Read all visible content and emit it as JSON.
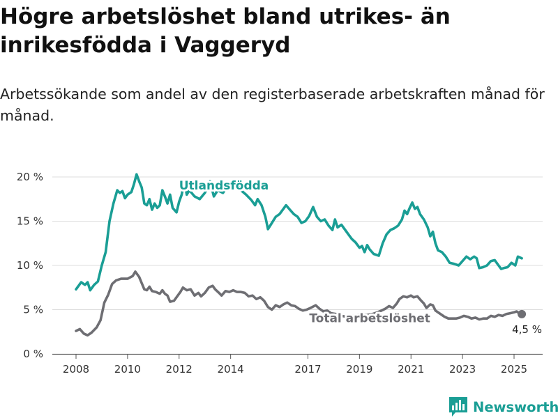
{
  "title": "Högre arbetslöshet bland utrikes- än inrikesfödda i Vaggeryd",
  "subtitle": "Arbetssökande som andel av den registerbaserade arbetskraften månad för månad.",
  "brand": {
    "name": "Newsworthy"
  },
  "colors": {
    "foreign": "#1a9e95",
    "total": "#6e6e73",
    "end_marker": "#6e6e73"
  },
  "chart_data": {
    "type": "line",
    "title": "Högre arbetslöshet bland utrikes- än inrikesfödda i Vaggeryd",
    "xlabel": "",
    "ylabel": "",
    "xlim": [
      2007.6,
      2026.0
    ],
    "ylim": [
      0,
      20.5
    ],
    "grid": true,
    "x_ticks": [
      2008,
      2010,
      2012,
      2014,
      2017,
      2019,
      2021,
      2023,
      2025
    ],
    "y_ticks": [
      0,
      5,
      10,
      15,
      20
    ],
    "y_tick_labels": [
      "0 %",
      "5 %",
      "10 %",
      "15 %",
      "20 %"
    ],
    "series": [
      {
        "name": "Utlandsfödda",
        "color": "#1a9e95",
        "points": [
          [
            2008.0,
            7.3
          ],
          [
            2008.2,
            8.1
          ],
          [
            2008.35,
            7.8
          ],
          [
            2008.45,
            8.1
          ],
          [
            2008.55,
            7.2
          ],
          [
            2008.7,
            7.8
          ],
          [
            2008.85,
            8.2
          ],
          [
            2009.0,
            10.0
          ],
          [
            2009.15,
            11.5
          ],
          [
            2009.3,
            15.0
          ],
          [
            2009.45,
            17.0
          ],
          [
            2009.6,
            18.5
          ],
          [
            2009.7,
            18.2
          ],
          [
            2009.8,
            18.4
          ],
          [
            2009.9,
            17.6
          ],
          [
            2010.0,
            18.0
          ],
          [
            2010.15,
            18.3
          ],
          [
            2010.25,
            19.2
          ],
          [
            2010.35,
            20.3
          ],
          [
            2010.45,
            19.5
          ],
          [
            2010.55,
            18.8
          ],
          [
            2010.65,
            17.0
          ],
          [
            2010.75,
            16.8
          ],
          [
            2010.85,
            17.5
          ],
          [
            2010.95,
            16.3
          ],
          [
            2011.05,
            17.0
          ],
          [
            2011.15,
            16.5
          ],
          [
            2011.25,
            16.8
          ],
          [
            2011.35,
            18.5
          ],
          [
            2011.45,
            17.8
          ],
          [
            2011.55,
            17.0
          ],
          [
            2011.65,
            18.0
          ],
          [
            2011.75,
            16.5
          ],
          [
            2011.9,
            16.0
          ],
          [
            2012.0,
            17.2
          ],
          [
            2012.1,
            18.0
          ],
          [
            2012.2,
            19.5
          ],
          [
            2012.3,
            18.0
          ],
          [
            2012.4,
            18.5
          ],
          [
            2012.6,
            17.8
          ],
          [
            2012.8,
            17.5
          ],
          [
            2013.0,
            18.2
          ],
          [
            2013.2,
            19.5
          ],
          [
            2013.35,
            17.8
          ],
          [
            2013.5,
            18.5
          ],
          [
            2013.7,
            18.2
          ],
          [
            2013.85,
            18.8
          ],
          [
            2014.0,
            19.0
          ],
          [
            2014.2,
            19.3
          ],
          [
            2014.4,
            18.5
          ],
          [
            2014.6,
            18.0
          ],
          [
            2014.8,
            17.4
          ],
          [
            2014.95,
            16.8
          ],
          [
            2015.05,
            17.5
          ],
          [
            2015.2,
            16.8
          ],
          [
            2015.35,
            15.5
          ],
          [
            2015.45,
            14.1
          ],
          [
            2015.6,
            14.8
          ],
          [
            2015.75,
            15.5
          ],
          [
            2015.9,
            15.8
          ],
          [
            2016.05,
            16.4
          ],
          [
            2016.15,
            16.8
          ],
          [
            2016.3,
            16.3
          ],
          [
            2016.45,
            15.8
          ],
          [
            2016.6,
            15.5
          ],
          [
            2016.75,
            14.8
          ],
          [
            2016.9,
            15.0
          ],
          [
            2017.05,
            15.6
          ],
          [
            2017.2,
            16.6
          ],
          [
            2017.35,
            15.5
          ],
          [
            2017.5,
            15.0
          ],
          [
            2017.65,
            15.2
          ],
          [
            2017.8,
            14.5
          ],
          [
            2017.95,
            14.0
          ],
          [
            2018.05,
            15.2
          ],
          [
            2018.15,
            14.3
          ],
          [
            2018.3,
            14.6
          ],
          [
            2018.45,
            14.0
          ],
          [
            2018.55,
            13.6
          ],
          [
            2018.7,
            13.0
          ],
          [
            2018.85,
            12.6
          ],
          [
            2019.0,
            12.0
          ],
          [
            2019.1,
            12.2
          ],
          [
            2019.2,
            11.5
          ],
          [
            2019.3,
            12.3
          ],
          [
            2019.4,
            11.8
          ],
          [
            2019.55,
            11.3
          ],
          [
            2019.75,
            11.1
          ],
          [
            2019.9,
            12.5
          ],
          [
            2020.05,
            13.5
          ],
          [
            2020.2,
            14.0
          ],
          [
            2020.35,
            14.2
          ],
          [
            2020.5,
            14.5
          ],
          [
            2020.65,
            15.2
          ],
          [
            2020.75,
            16.2
          ],
          [
            2020.85,
            15.8
          ],
          [
            2020.95,
            16.5
          ],
          [
            2021.05,
            17.1
          ],
          [
            2021.15,
            16.4
          ],
          [
            2021.25,
            16.6
          ],
          [
            2021.35,
            15.8
          ],
          [
            2021.5,
            15.2
          ],
          [
            2021.65,
            14.3
          ],
          [
            2021.75,
            13.3
          ],
          [
            2021.85,
            13.8
          ],
          [
            2021.95,
            12.5
          ],
          [
            2022.05,
            11.7
          ],
          [
            2022.2,
            11.5
          ],
          [
            2022.35,
            11.0
          ],
          [
            2022.5,
            10.3
          ],
          [
            2022.65,
            10.2
          ],
          [
            2022.85,
            10.0
          ],
          [
            2023.0,
            10.5
          ],
          [
            2023.15,
            11.0
          ],
          [
            2023.3,
            10.7
          ],
          [
            2023.45,
            11.0
          ],
          [
            2023.55,
            10.8
          ],
          [
            2023.65,
            9.7
          ],
          [
            2023.8,
            9.8
          ],
          [
            2023.95,
            10.0
          ],
          [
            2024.1,
            10.5
          ],
          [
            2024.25,
            10.6
          ],
          [
            2024.4,
            10.0
          ],
          [
            2024.5,
            9.6
          ],
          [
            2024.6,
            9.7
          ],
          [
            2024.75,
            9.8
          ],
          [
            2024.9,
            10.3
          ],
          [
            2025.05,
            10.0
          ],
          [
            2025.15,
            11.0
          ],
          [
            2025.3,
            10.8
          ]
        ]
      },
      {
        "name": "Total arbetslöshet",
        "color": "#6e6e73",
        "points": [
          [
            2008.0,
            2.6
          ],
          [
            2008.15,
            2.8
          ],
          [
            2008.3,
            2.3
          ],
          [
            2008.45,
            2.1
          ],
          [
            2008.6,
            2.4
          ],
          [
            2008.8,
            3.0
          ],
          [
            2008.95,
            3.8
          ],
          [
            2009.1,
            5.8
          ],
          [
            2009.25,
            6.7
          ],
          [
            2009.4,
            7.9
          ],
          [
            2009.55,
            8.3
          ],
          [
            2009.75,
            8.5
          ],
          [
            2010.0,
            8.5
          ],
          [
            2010.2,
            8.8
          ],
          [
            2010.3,
            9.3
          ],
          [
            2010.45,
            8.7
          ],
          [
            2010.55,
            8.0
          ],
          [
            2010.65,
            7.3
          ],
          [
            2010.75,
            7.2
          ],
          [
            2010.85,
            7.6
          ],
          [
            2010.95,
            7.1
          ],
          [
            2011.1,
            7.0
          ],
          [
            2011.25,
            6.8
          ],
          [
            2011.35,
            7.2
          ],
          [
            2011.45,
            6.8
          ],
          [
            2011.55,
            6.6
          ],
          [
            2011.65,
            5.9
          ],
          [
            2011.8,
            6.0
          ],
          [
            2011.95,
            6.6
          ],
          [
            2012.05,
            7.0
          ],
          [
            2012.15,
            7.5
          ],
          [
            2012.3,
            7.2
          ],
          [
            2012.45,
            7.3
          ],
          [
            2012.6,
            6.6
          ],
          [
            2012.75,
            6.9
          ],
          [
            2012.85,
            6.5
          ],
          [
            2013.0,
            6.9
          ],
          [
            2013.15,
            7.5
          ],
          [
            2013.3,
            7.7
          ],
          [
            2013.4,
            7.3
          ],
          [
            2013.55,
            6.9
          ],
          [
            2013.65,
            6.6
          ],
          [
            2013.8,
            7.1
          ],
          [
            2013.95,
            7.0
          ],
          [
            2014.1,
            7.2
          ],
          [
            2014.25,
            7.0
          ],
          [
            2014.4,
            7.0
          ],
          [
            2014.55,
            6.9
          ],
          [
            2014.7,
            6.5
          ],
          [
            2014.85,
            6.6
          ],
          [
            2015.0,
            6.2
          ],
          [
            2015.15,
            6.4
          ],
          [
            2015.3,
            6.0
          ],
          [
            2015.45,
            5.3
          ],
          [
            2015.6,
            5.0
          ],
          [
            2015.75,
            5.5
          ],
          [
            2015.9,
            5.3
          ],
          [
            2016.05,
            5.6
          ],
          [
            2016.2,
            5.8
          ],
          [
            2016.35,
            5.5
          ],
          [
            2016.5,
            5.4
          ],
          [
            2016.65,
            5.1
          ],
          [
            2016.8,
            4.9
          ],
          [
            2016.95,
            5.0
          ],
          [
            2017.1,
            5.2
          ],
          [
            2017.3,
            5.5
          ],
          [
            2017.45,
            5.1
          ],
          [
            2017.6,
            4.8
          ],
          [
            2017.75,
            4.9
          ],
          [
            2017.9,
            4.6
          ],
          [
            2018.1,
            4.5
          ],
          [
            2018.3,
            4.3
          ],
          [
            2018.5,
            4.2
          ],
          [
            2018.7,
            4.3
          ],
          [
            2018.9,
            4.4
          ],
          [
            2019.1,
            4.5
          ],
          [
            2019.3,
            4.4
          ],
          [
            2019.5,
            4.5
          ],
          [
            2019.7,
            4.7
          ],
          [
            2019.85,
            4.9
          ],
          [
            2020.0,
            5.1
          ],
          [
            2020.15,
            5.4
          ],
          [
            2020.3,
            5.2
          ],
          [
            2020.45,
            5.7
          ],
          [
            2020.55,
            6.2
          ],
          [
            2020.7,
            6.5
          ],
          [
            2020.85,
            6.4
          ],
          [
            2021.0,
            6.6
          ],
          [
            2021.1,
            6.4
          ],
          [
            2021.25,
            6.5
          ],
          [
            2021.4,
            6.0
          ],
          [
            2021.5,
            5.7
          ],
          [
            2021.6,
            5.2
          ],
          [
            2021.75,
            5.6
          ],
          [
            2021.85,
            5.5
          ],
          [
            2021.95,
            4.9
          ],
          [
            2022.1,
            4.6
          ],
          [
            2022.3,
            4.2
          ],
          [
            2022.45,
            4.0
          ],
          [
            2022.6,
            4.0
          ],
          [
            2022.75,
            4.0
          ],
          [
            2022.9,
            4.1
          ],
          [
            2023.05,
            4.3
          ],
          [
            2023.2,
            4.2
          ],
          [
            2023.35,
            4.0
          ],
          [
            2023.5,
            4.1
          ],
          [
            2023.65,
            3.9
          ],
          [
            2023.8,
            4.0
          ],
          [
            2023.95,
            4.0
          ],
          [
            2024.1,
            4.3
          ],
          [
            2024.25,
            4.2
          ],
          [
            2024.4,
            4.4
          ],
          [
            2024.55,
            4.3
          ],
          [
            2024.7,
            4.5
          ],
          [
            2024.85,
            4.6
          ],
          [
            2025.0,
            4.7
          ],
          [
            2025.1,
            4.8
          ],
          [
            2025.2,
            4.6
          ],
          [
            2025.3,
            4.5
          ]
        ]
      }
    ],
    "labels": [
      {
        "text": "Utlandsfödda",
        "series": 0,
        "x": 2012.0,
        "y": 18.6
      },
      {
        "text": "Total arbetslöshet",
        "series": 1,
        "x": 2017.05,
        "y": 3.6
      }
    ],
    "end_marker": {
      "x": 2025.3,
      "y": 4.5,
      "label": "4,5 %"
    }
  }
}
